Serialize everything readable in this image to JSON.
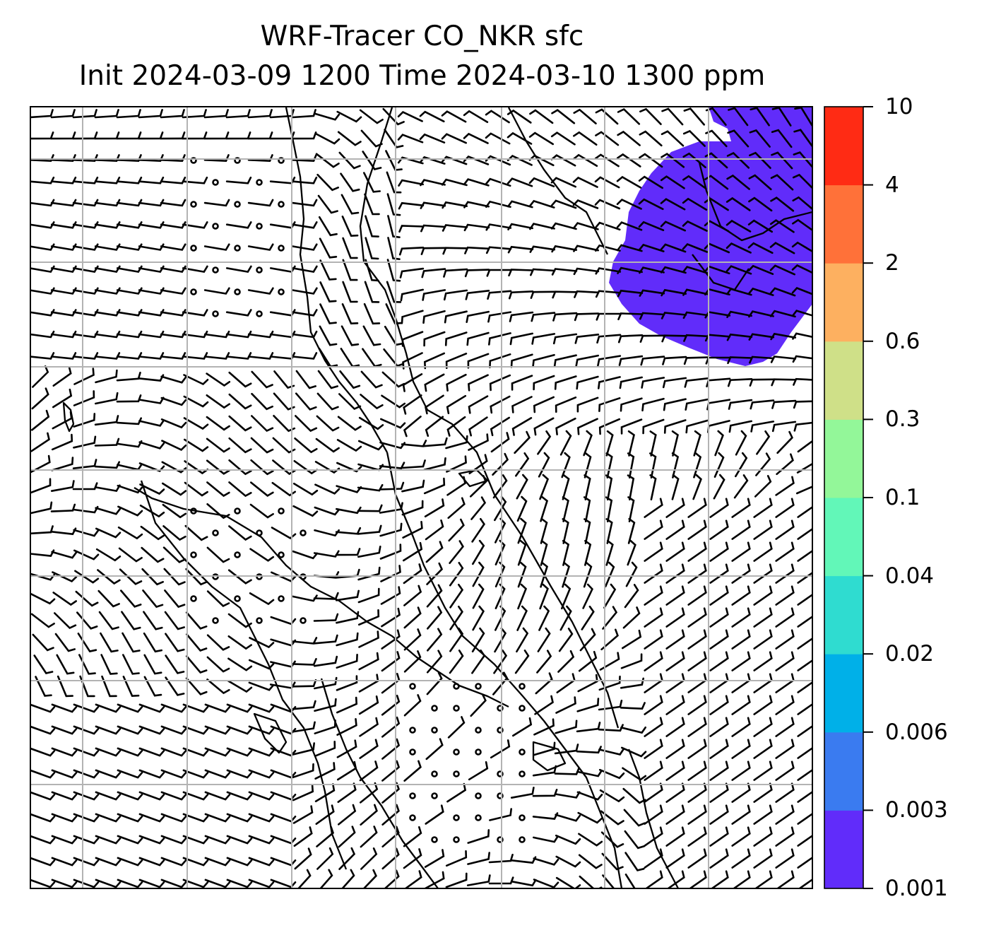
{
  "title": {
    "line1": "WRF-Tracer CO_NKR sfc",
    "line2": "Init 2024-03-09 1200 Time 2024-03-10 1300 ppm"
  },
  "colorbar": {
    "levels": [
      "0.001",
      "0.003",
      "0.006",
      "0.02",
      "0.04",
      "0.1",
      "0.3",
      "0.6",
      "2",
      "4",
      "10"
    ],
    "colors": [
      "#612cfa",
      "#3a7bf0",
      "#00b0e8",
      "#2fdcd0",
      "#62f7b8",
      "#93f799",
      "#cfe088",
      "#fdb060",
      "#ff7139",
      "#ff2b14"
    ]
  },
  "map": {
    "grid": true,
    "background": "#ffffff",
    "plume_color": "#612cfa",
    "plume_level": "0.001"
  }
}
